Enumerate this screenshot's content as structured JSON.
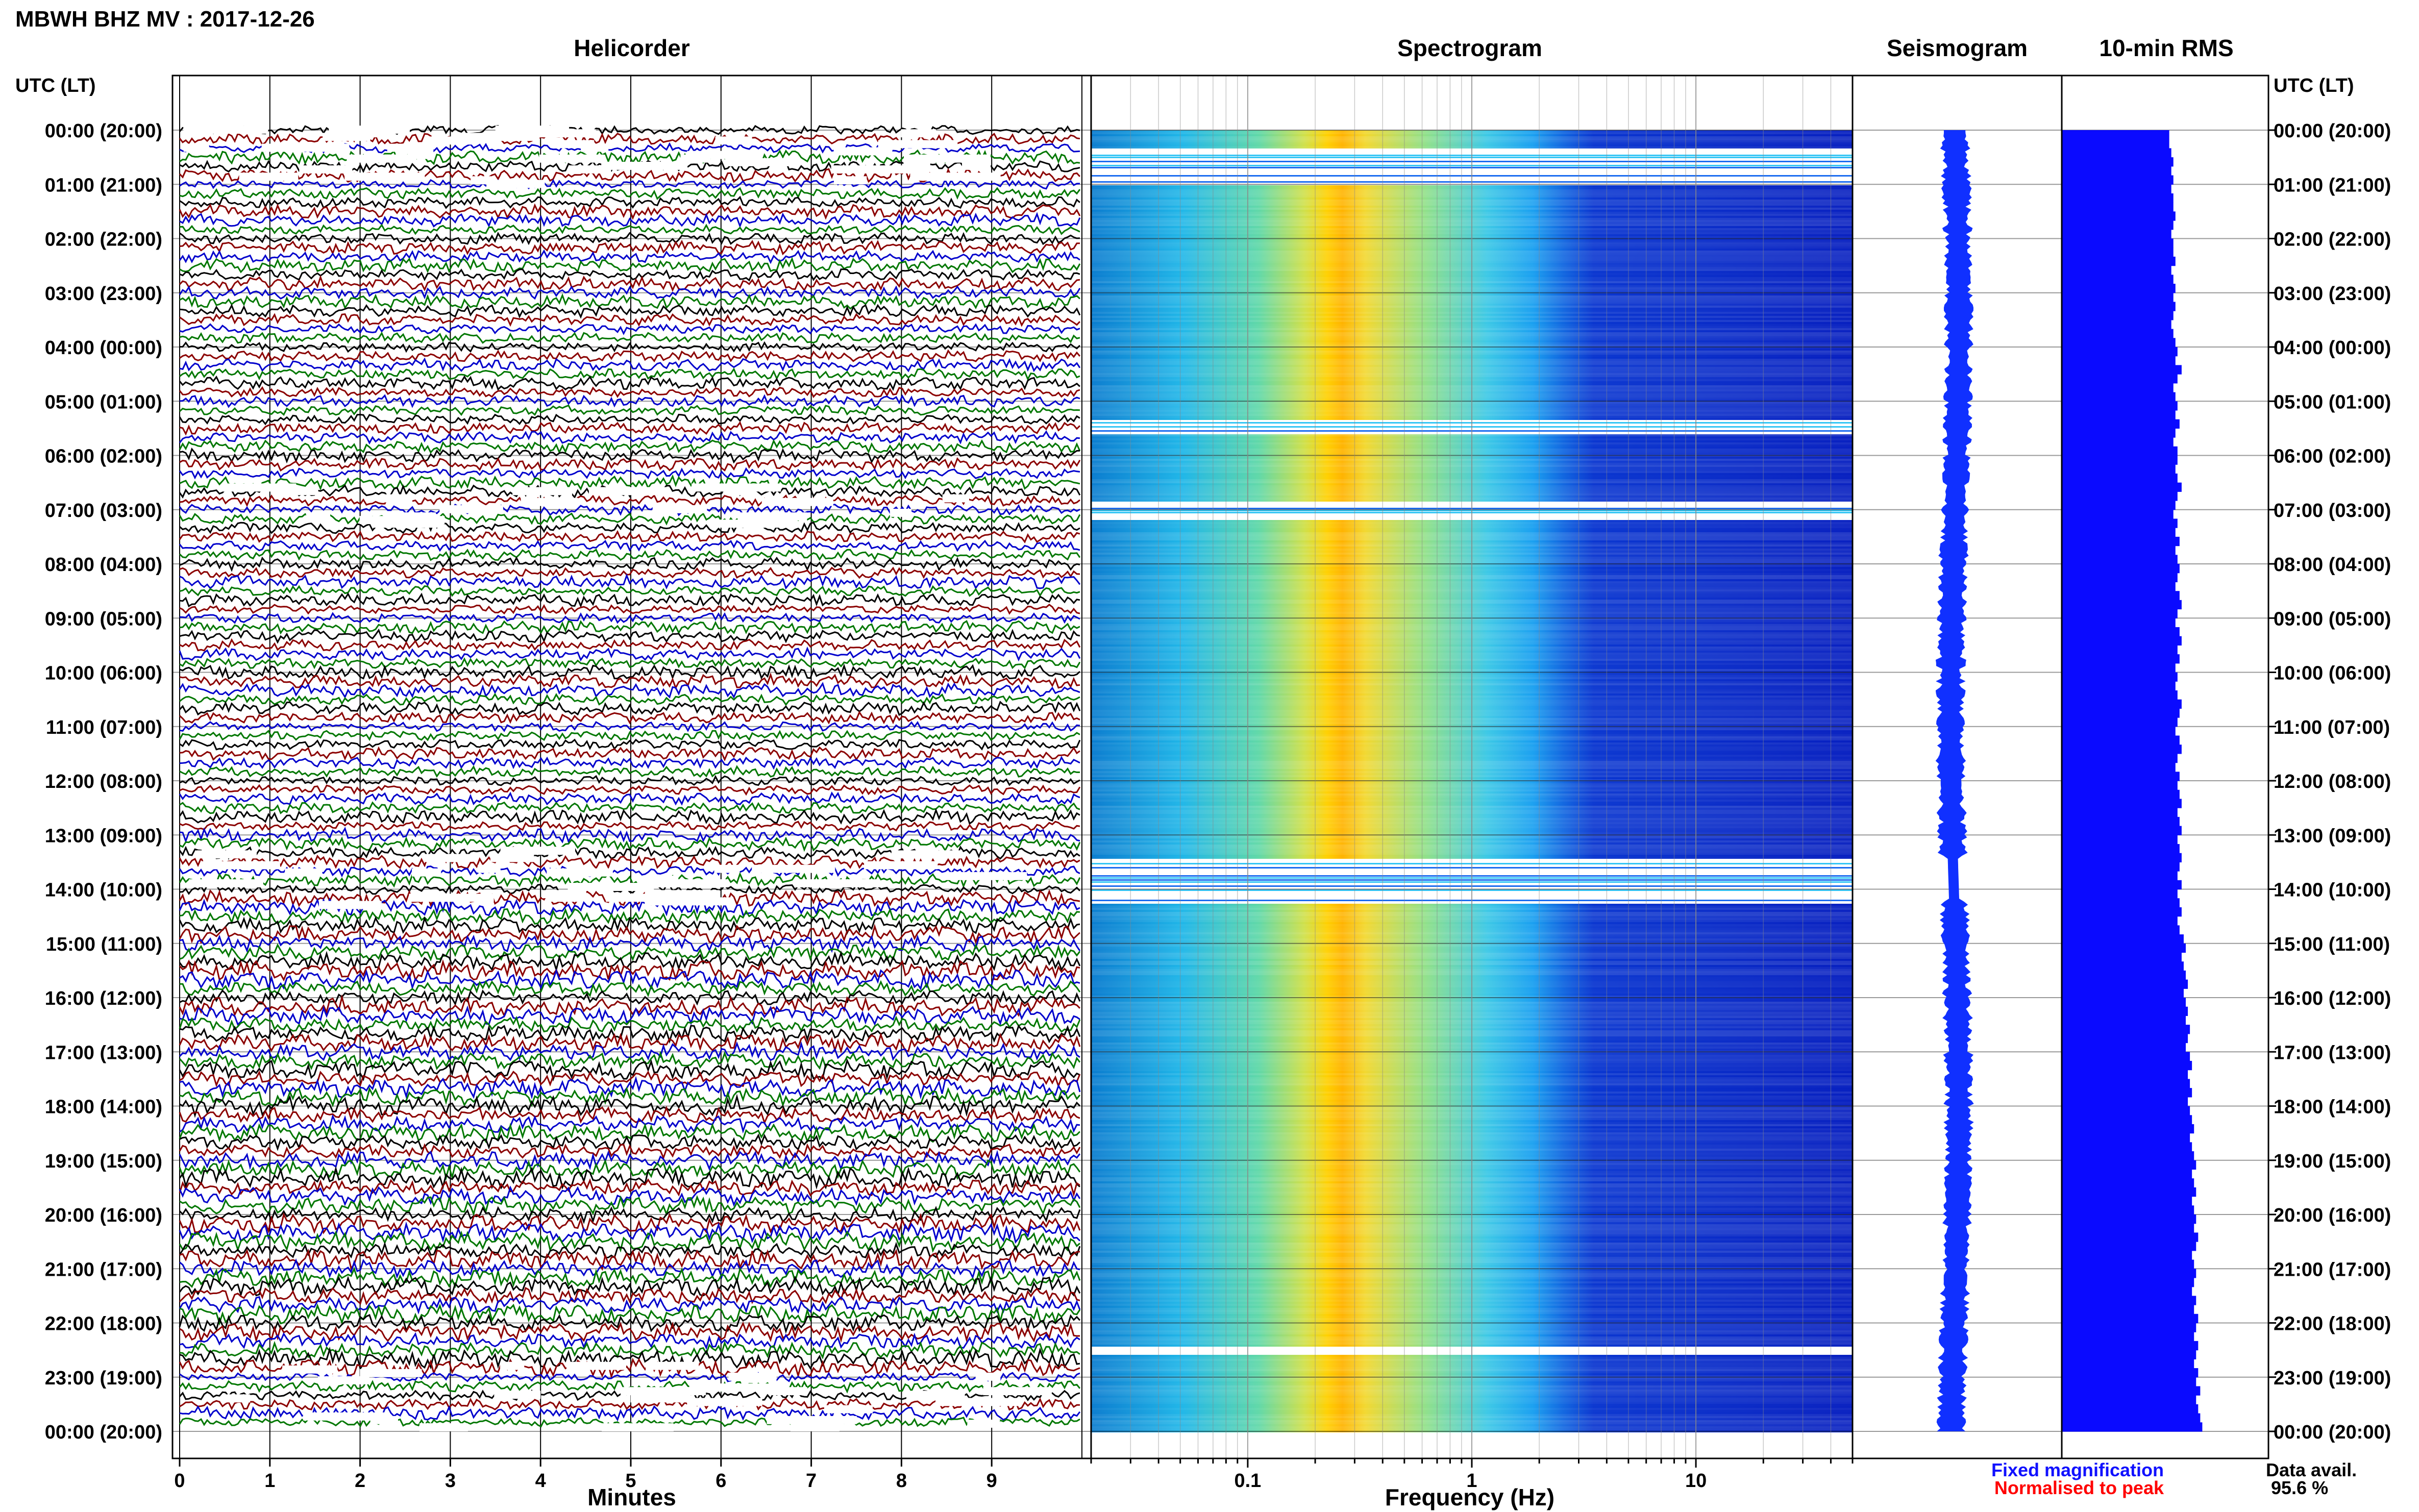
{
  "title": "MBWH BHZ MV : 2017-12-26",
  "panels": {
    "helicorder": "Helicorder",
    "spectrogram": "Spectrogram",
    "seismogram": "Seismogram",
    "rms": "10-min RMS"
  },
  "time_axis_label": "UTC (LT)",
  "time_ticks": [
    "00:00 (20:00)",
    "01:00 (21:00)",
    "02:00 (22:00)",
    "03:00 (23:00)",
    "04:00 (00:00)",
    "05:00 (01:00)",
    "06:00 (02:00)",
    "07:00 (03:00)",
    "08:00 (04:00)",
    "09:00 (05:00)",
    "10:00 (06:00)",
    "11:00 (07:00)",
    "12:00 (08:00)",
    "13:00 (09:00)",
    "14:00 (10:00)",
    "15:00 (11:00)",
    "16:00 (12:00)",
    "17:00 (13:00)",
    "18:00 (14:00)",
    "19:00 (15:00)",
    "20:00 (16:00)",
    "21:00 (17:00)",
    "22:00 (18:00)",
    "23:00 (19:00)",
    "00:00 (20:00)"
  ],
  "helicorder_xlabel": "Minutes",
  "helicorder_xticks": [
    "0",
    "1",
    "2",
    "3",
    "4",
    "5",
    "6",
    "7",
    "8",
    "9"
  ],
  "spectrogram_xlabel": "Frequency (Hz)",
  "spectrogram_xticks": [
    "0.1",
    "1",
    "10"
  ],
  "legend": {
    "fixed": "Fixed magnification",
    "normalised": "Normalised to peak"
  },
  "data_avail": {
    "label": "Data avail.",
    "value": "95.6 %"
  },
  "colors": {
    "trace_cycle": [
      "#000000",
      "#8b0000",
      "#0000cc",
      "#007700"
    ],
    "seismogram": "#1030ff",
    "rms": "#0a0aff",
    "fixed_text": "#1010ff",
    "normalised_text": "#ff0000",
    "spectro_low": "#0a1ec8",
    "spectro_mid": "#22c8ff",
    "spectro_high": "#ffd000",
    "spectro_peak": "#ff8800"
  },
  "chart_data": {
    "type": "heatmap",
    "title": "MBWH BHZ MV : 2017-12-26",
    "time_range_utc": [
      "00:00",
      "24:00"
    ],
    "helicorder": {
      "xlabel": "Minutes",
      "xlim": [
        0,
        10
      ],
      "rows": 144,
      "trace_colors": [
        "black",
        "darkred",
        "blue",
        "green"
      ]
    },
    "spectrogram": {
      "xlabel": "Frequency (Hz)",
      "xscale": "log",
      "xlim": [
        0.02,
        50
      ],
      "peak_band_hz": [
        0.2,
        0.3
      ],
      "gaps_utc": [
        "00:20-01:00",
        "05:20-05:35",
        "06:50-07:10",
        "13:25-14:15",
        "22:25-22:35"
      ]
    },
    "rms_10min": {
      "values": [
        0.52,
        0.52,
        0.53,
        0.54,
        0.53,
        0.54,
        0.53,
        0.54,
        0.54,
        0.55,
        0.54,
        0.53,
        0.54,
        0.54,
        0.55,
        0.53,
        0.54,
        0.55,
        0.54,
        0.55,
        0.54,
        0.53,
        0.54,
        0.55,
        0.56,
        0.55,
        0.58,
        0.56,
        0.54,
        0.55,
        0.56,
        0.55,
        0.57,
        0.55,
        0.54,
        0.56,
        0.56,
        0.55,
        0.56,
        0.58,
        0.56,
        0.55,
        0.54,
        0.56,
        0.55,
        0.57,
        0.55,
        0.56,
        0.57,
        0.56,
        0.55,
        0.57,
        0.58,
        0.56,
        0.55,
        0.57,
        0.58,
        0.56,
        0.57,
        0.55,
        0.56,
        0.55,
        0.56,
        0.58,
        0.57,
        0.56,
        0.55,
        0.57,
        0.58,
        0.56,
        0.55,
        0.57,
        0.56,
        0.57,
        0.58,
        0.56,
        0.57,
        0.58,
        0.56,
        0.57,
        0.58,
        0.57,
        0.56,
        0.58,
        0.56,
        0.57,
        0.58,
        0.56,
        0.57,
        0.59,
        0.6,
        0.58,
        0.59,
        0.6,
        0.61,
        0.59,
        0.6,
        0.61,
        0.6,
        0.62,
        0.61,
        0.6,
        0.62,
        0.63,
        0.61,
        0.62,
        0.63,
        0.61,
        0.62,
        0.63,
        0.64,
        0.62,
        0.63,
        0.64,
        0.65,
        0.63,
        0.64,
        0.65,
        0.63,
        0.64,
        0.65,
        0.64,
        0.66,
        0.65,
        0.63,
        0.64,
        0.65,
        0.64,
        0.63,
        0.65,
        0.64,
        0.66,
        0.65,
        0.64,
        0.66,
        0.65,
        0.64,
        0.66,
        0.65,
        0.67,
        0.65,
        0.66,
        0.67,
        0.68
      ],
      "xlim": [
        0,
        1
      ]
    }
  }
}
